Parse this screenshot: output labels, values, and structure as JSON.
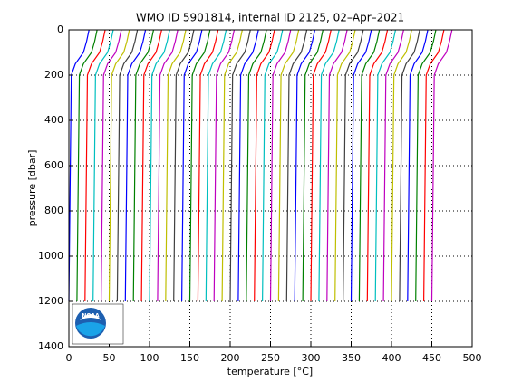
{
  "chart_data": {
    "type": "line",
    "title": "WMO ID 5901814, internal ID 2125, 02–Apr–2021",
    "xlabel": "temperature [°C]",
    "ylabel": "pressure [dbar]",
    "logo_text": "NOAA",
    "xlim": [
      0,
      500
    ],
    "xticks": [
      0,
      50,
      100,
      150,
      200,
      250,
      300,
      350,
      400,
      450,
      500
    ],
    "ylim": [
      0,
      1400
    ],
    "yticks": [
      0,
      200,
      400,
      600,
      800,
      1000,
      1200,
      1400
    ],
    "y_reversed": true,
    "grid": true,
    "y": [
      0,
      50,
      100,
      150,
      200,
      1200
    ],
    "series": [
      {
        "color": "#0000ff",
        "x": [
          25,
          22,
          18,
          8,
          3,
          0
        ]
      },
      {
        "color": "#008000",
        "x": [
          35,
          32,
          28,
          18,
          13,
          10
        ]
      },
      {
        "color": "#ff0000",
        "x": [
          45,
          42,
          38,
          28,
          23,
          20
        ]
      },
      {
        "color": "#00bfbf",
        "x": [
          55,
          52,
          48,
          38,
          33,
          30
        ]
      },
      {
        "color": "#bf00bf",
        "x": [
          65,
          62,
          58,
          48,
          43,
          40
        ]
      },
      {
        "color": "#bfbf00",
        "x": [
          75,
          72,
          68,
          58,
          53,
          50
        ]
      },
      {
        "color": "#404040",
        "x": [
          85,
          82,
          78,
          68,
          63,
          60
        ]
      },
      {
        "color": "#0000ff",
        "x": [
          95,
          92,
          88,
          78,
          73,
          70
        ]
      },
      {
        "color": "#008000",
        "x": [
          105,
          102,
          98,
          88,
          83,
          80
        ]
      },
      {
        "color": "#ff0000",
        "x": [
          115,
          112,
          108,
          98,
          93,
          90
        ]
      },
      {
        "color": "#00bfbf",
        "x": [
          125,
          122,
          118,
          108,
          103,
          100
        ]
      },
      {
        "color": "#bf00bf",
        "x": [
          135,
          132,
          128,
          118,
          113,
          110
        ]
      },
      {
        "color": "#bfbf00",
        "x": [
          145,
          142,
          138,
          128,
          123,
          120
        ]
      },
      {
        "color": "#404040",
        "x": [
          155,
          152,
          148,
          138,
          133,
          130
        ]
      },
      {
        "color": "#0000ff",
        "x": [
          165,
          162,
          158,
          148,
          143,
          140
        ]
      },
      {
        "color": "#008000",
        "x": [
          175,
          172,
          168,
          158,
          153,
          150
        ]
      },
      {
        "color": "#ff0000",
        "x": [
          185,
          182,
          178,
          168,
          163,
          160
        ]
      },
      {
        "color": "#00bfbf",
        "x": [
          195,
          192,
          188,
          178,
          173,
          170
        ]
      },
      {
        "color": "#bf00bf",
        "x": [
          205,
          202,
          198,
          188,
          183,
          180
        ]
      },
      {
        "color": "#bfbf00",
        "x": [
          215,
          212,
          208,
          198,
          193,
          190
        ]
      },
      {
        "color": "#404040",
        "x": [
          225,
          222,
          218,
          208,
          203,
          200
        ]
      },
      {
        "color": "#0000ff",
        "x": [
          235,
          232,
          228,
          218,
          213,
          210
        ]
      },
      {
        "color": "#008000",
        "x": [
          245,
          242,
          238,
          228,
          223,
          220
        ]
      },
      {
        "color": "#ff0000",
        "x": [
          255,
          252,
          248,
          238,
          233,
          230
        ]
      },
      {
        "color": "#00bfbf",
        "x": [
          265,
          262,
          258,
          248,
          243,
          240
        ]
      },
      {
        "color": "#bf00bf",
        "x": [
          275,
          272,
          268,
          258,
          253,
          250
        ]
      },
      {
        "color": "#bfbf00",
        "x": [
          285,
          282,
          278,
          268,
          263,
          260
        ]
      },
      {
        "color": "#404040",
        "x": [
          295,
          292,
          288,
          278,
          273,
          270
        ]
      },
      {
        "color": "#0000ff",
        "x": [
          305,
          302,
          298,
          288,
          283,
          280
        ]
      },
      {
        "color": "#008000",
        "x": [
          315,
          312,
          308,
          298,
          293,
          290
        ]
      },
      {
        "color": "#ff0000",
        "x": [
          325,
          322,
          318,
          308,
          303,
          300
        ]
      },
      {
        "color": "#00bfbf",
        "x": [
          335,
          332,
          328,
          318,
          313,
          310
        ]
      },
      {
        "color": "#bf00bf",
        "x": [
          345,
          342,
          338,
          328,
          323,
          320
        ]
      },
      {
        "color": "#bfbf00",
        "x": [
          355,
          352,
          348,
          338,
          333,
          330
        ]
      },
      {
        "color": "#404040",
        "x": [
          365,
          362,
          358,
          348,
          343,
          340
        ]
      },
      {
        "color": "#0000ff",
        "x": [
          375,
          372,
          368,
          358,
          353,
          350
        ]
      },
      {
        "color": "#008000",
        "x": [
          385,
          382,
          378,
          368,
          363,
          360
        ]
      },
      {
        "color": "#ff0000",
        "x": [
          395,
          392,
          388,
          378,
          373,
          370
        ]
      },
      {
        "color": "#00bfbf",
        "x": [
          405,
          402,
          398,
          388,
          383,
          380
        ]
      },
      {
        "color": "#bf00bf",
        "x": [
          415,
          412,
          408,
          398,
          393,
          390
        ]
      },
      {
        "color": "#bfbf00",
        "x": [
          425,
          422,
          418,
          408,
          403,
          400
        ]
      },
      {
        "color": "#404040",
        "x": [
          435,
          432,
          428,
          418,
          413,
          410
        ]
      },
      {
        "color": "#0000ff",
        "x": [
          445,
          442,
          438,
          428,
          423,
          420
        ]
      },
      {
        "color": "#008000",
        "x": [
          455,
          452,
          448,
          438,
          433,
          430
        ]
      },
      {
        "color": "#ff0000",
        "x": [
          465,
          462,
          458,
          448,
          443,
          440
        ]
      },
      {
        "color": "#bf00bf",
        "x": [
          475,
          472,
          468,
          458,
          453,
          450
        ]
      }
    ]
  }
}
